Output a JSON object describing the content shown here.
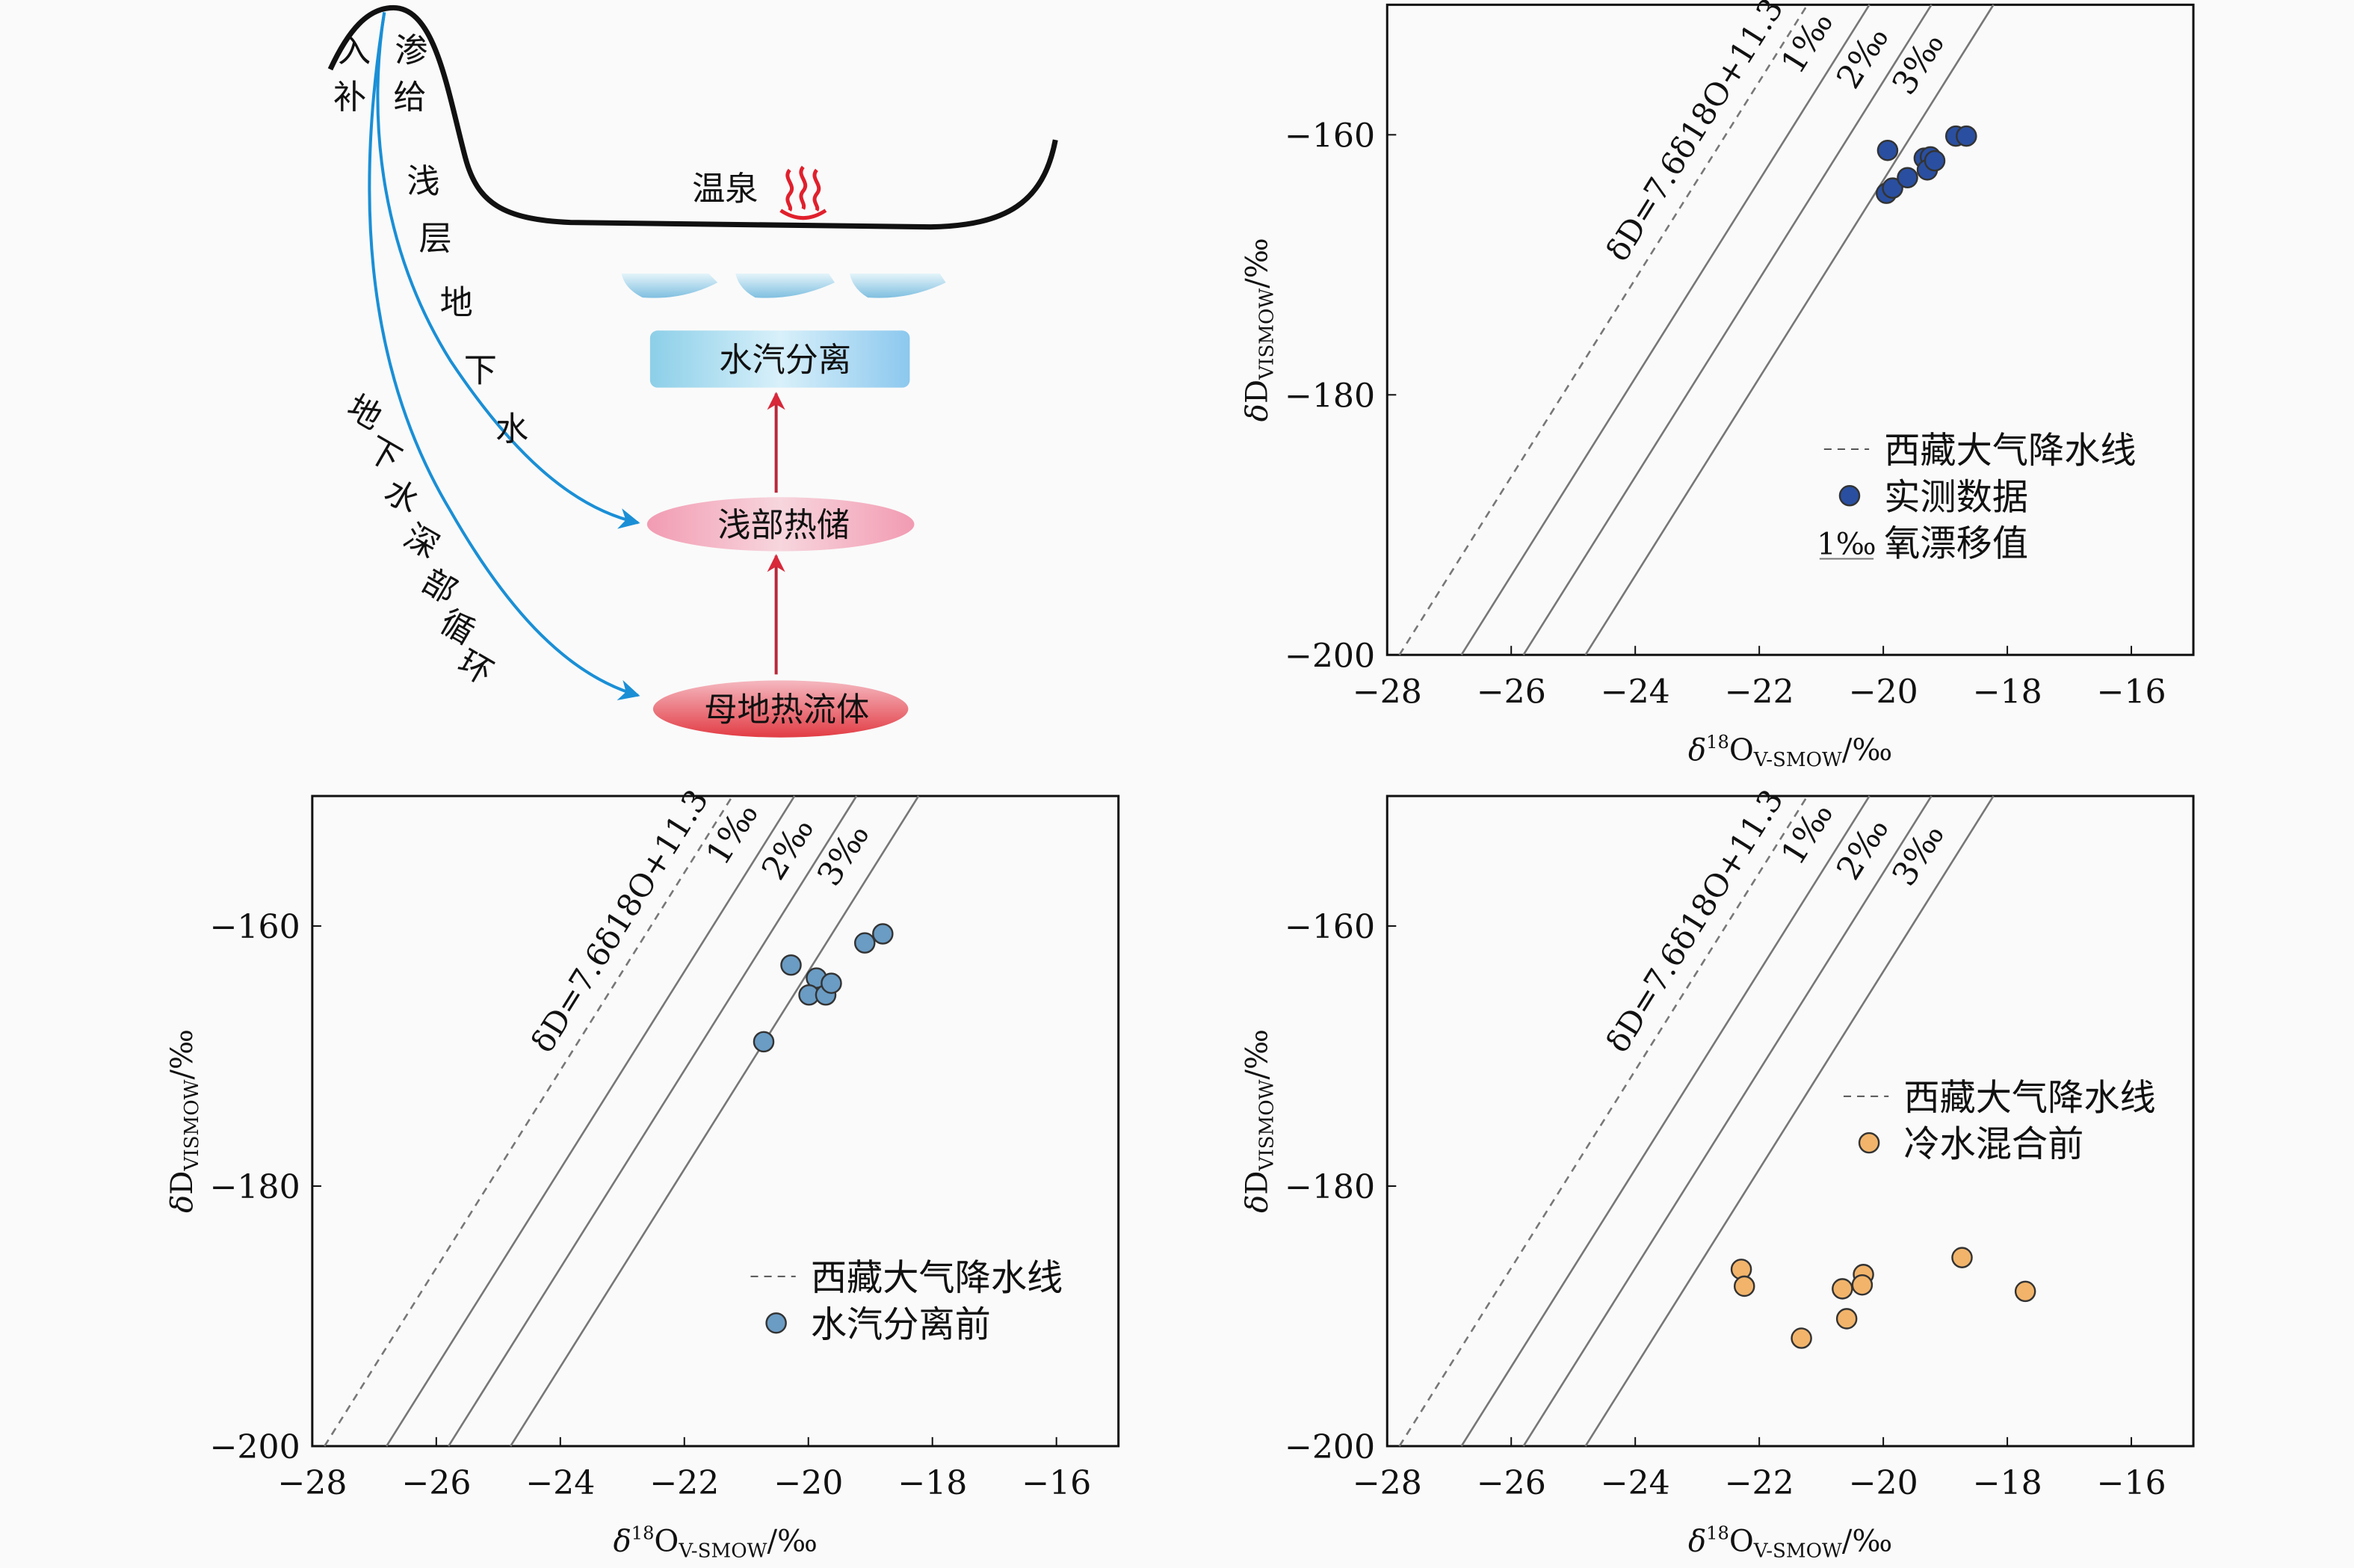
{
  "diagram": {
    "recharge_chars": [
      "入",
      "补"
    ],
    "recharge_chars2": [
      "渗",
      "给"
    ],
    "shallow_path_chars": [
      "浅",
      "层",
      "地",
      "下",
      "水"
    ],
    "deep_path_chars": [
      "地",
      "下",
      "水",
      "深",
      "部",
      "循",
      "环"
    ],
    "hot_spring": "温泉",
    "steam_separation": "水汽分离",
    "shallow_reservoir": "浅部热储",
    "parent_fluid": "母地热流体",
    "colors": {
      "flow": "#1a8fd6",
      "arrow": "#d8283a",
      "ground": "#111111",
      "reservoir": "#f2a3b8",
      "parent": "#e8505a",
      "separation": "#8fd0ea"
    }
  },
  "chart_data": [
    {
      "type": "scatter",
      "panel": "top-right",
      "xlabel": "δ18OV-SMOW/‰",
      "ylabel": "δDVISMOW/‰",
      "xlim": [
        -28,
        -15
      ],
      "ylim": [
        -200,
        -150
      ],
      "xticks": [
        -28,
        -26,
        -24,
        -22,
        -20,
        -18,
        -16
      ],
      "yticks": [
        -160,
        -180,
        -200
      ],
      "grid": false,
      "reference_lines": [
        {
          "label": "δD=7.6δ18O+11.3",
          "slope": 7.6,
          "intercept": 11.3,
          "shift": 0,
          "style": "dashed"
        },
        {
          "label": "1‰",
          "shift": 1,
          "style": "solid"
        },
        {
          "label": "2‰",
          "shift": 2,
          "style": "solid"
        },
        {
          "label": "3‰",
          "shift": 3,
          "style": "solid"
        }
      ],
      "legend": {
        "placement": "center-right",
        "entries": [
          {
            "symbol": "dashed",
            "label": "西藏大气降水线"
          },
          {
            "symbol": "circle",
            "label": "实测数据"
          },
          {
            "symbol": "shift",
            "prefix": "1‰",
            "label": "氧漂移值"
          }
        ]
      },
      "series": [
        {
          "name": "实测数据",
          "color": "#2a4fa0",
          "points": [
            [
              -19.93,
              -161.2
            ],
            [
              -19.95,
              -164.5
            ],
            [
              -19.85,
              -164.1
            ],
            [
              -19.61,
              -163.3
            ],
            [
              -19.34,
              -161.8
            ],
            [
              -19.24,
              -161.7
            ],
            [
              -19.29,
              -162.7
            ],
            [
              -19.17,
              -162.0
            ],
            [
              -18.83,
              -160.1
            ],
            [
              -18.66,
              -160.1
            ]
          ]
        }
      ]
    },
    {
      "type": "scatter",
      "panel": "bottom-left",
      "xlabel": "δ18OV-SMOW/‰",
      "ylabel": "δDVISMOW/‰",
      "xlim": [
        -28,
        -15
      ],
      "ylim": [
        -200,
        -150
      ],
      "xticks": [
        -28,
        -26,
        -24,
        -22,
        -20,
        -18,
        -16
      ],
      "yticks": [
        -160,
        -180,
        -200
      ],
      "grid": false,
      "reference_lines": [
        {
          "label": "δD=7.6δ18O+11.3",
          "slope": 7.6,
          "intercept": 11.3,
          "shift": 0,
          "style": "dashed"
        },
        {
          "label": "1‰",
          "shift": 1,
          "style": "solid"
        },
        {
          "label": "2‰",
          "shift": 2,
          "style": "solid"
        },
        {
          "label": "3‰",
          "shift": 3,
          "style": "solid"
        }
      ],
      "legend": {
        "placement": "bottom-right",
        "entries": [
          {
            "symbol": "dashed",
            "label": "西藏大气降水线"
          },
          {
            "symbol": "circle",
            "label": "水汽分离前"
          }
        ]
      },
      "series": [
        {
          "name": "水汽分离前",
          "color": "#6a9cc4",
          "points": [
            [
              -20.28,
              -163.0
            ],
            [
              -20.72,
              -168.9
            ],
            [
              -19.87,
              -164.0
            ],
            [
              -19.99,
              -165.3
            ],
            [
              -19.72,
              -165.3
            ],
            [
              -19.63,
              -164.4
            ],
            [
              -19.09,
              -161.3
            ],
            [
              -18.8,
              -160.6
            ]
          ]
        }
      ]
    },
    {
      "type": "scatter",
      "panel": "bottom-right",
      "xlabel": "δ18OV-SMOW/‰",
      "ylabel": "δDVISMOW/‰",
      "xlim": [
        -28,
        -15
      ],
      "ylim": [
        -200,
        -150
      ],
      "xticks": [
        -28,
        -26,
        -24,
        -22,
        -20,
        -18,
        -16
      ],
      "yticks": [
        -160,
        -180,
        -200
      ],
      "grid": false,
      "reference_lines": [
        {
          "label": "δD=7.6δ18O+11.3",
          "slope": 7.6,
          "intercept": 11.3,
          "shift": 0,
          "style": "dashed"
        },
        {
          "label": "1‰",
          "shift": 1,
          "style": "solid"
        },
        {
          "label": "2‰",
          "shift": 2,
          "style": "solid"
        },
        {
          "label": "3‰",
          "shift": 3,
          "style": "solid"
        }
      ],
      "legend": {
        "placement": "center-right",
        "entries": [
          {
            "symbol": "dashed",
            "label": "西藏大气降水线"
          },
          {
            "symbol": "circle",
            "label": "冷水混合前"
          }
        ]
      },
      "series": [
        {
          "name": "冷水混合前",
          "color": "#f2b46a",
          "points": [
            [
              -22.29,
              -186.4
            ],
            [
              -22.24,
              -187.7
            ],
            [
              -21.32,
              -191.7
            ],
            [
              -20.66,
              -187.9
            ],
            [
              -20.32,
              -186.8
            ],
            [
              -20.34,
              -187.6
            ],
            [
              -20.59,
              -190.2
            ],
            [
              -18.73,
              -185.5
            ],
            [
              -17.71,
              -188.1
            ]
          ]
        }
      ]
    }
  ]
}
